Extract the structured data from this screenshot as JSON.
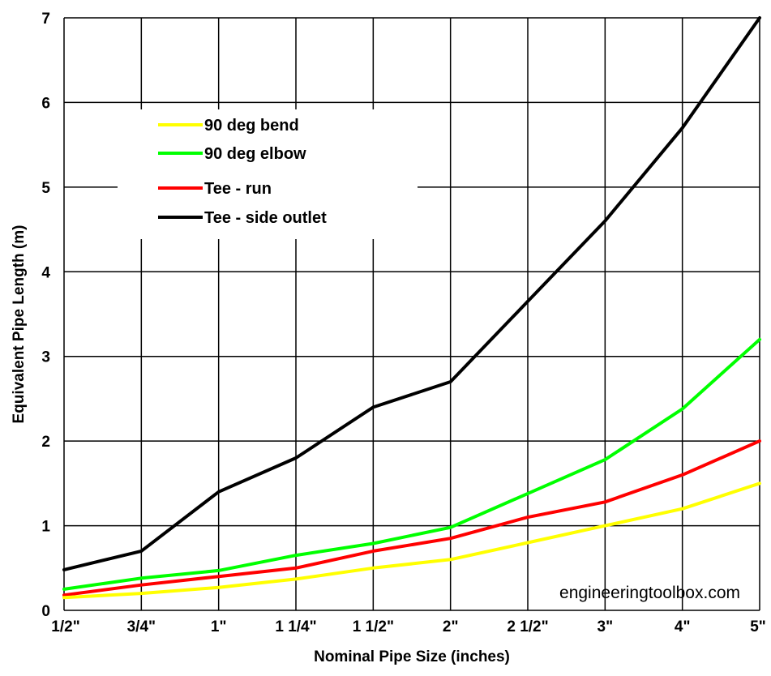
{
  "chart_data": {
    "type": "line",
    "title": "",
    "xlabel": "Nominal Pipe Size (inches)",
    "ylabel": "Equivalent Pipe Length (m)",
    "categories": [
      "1/2\"",
      "3/4\"",
      "1\"",
      "1 1/4\"",
      "1 1/2\"",
      "2\"",
      "2 1/2\"",
      "3\"",
      "4\"",
      "5\""
    ],
    "ylim": [
      0,
      7
    ],
    "yticks": [
      "0",
      "1",
      "2",
      "3",
      "4",
      "5",
      "6",
      "7"
    ],
    "grid": true,
    "legend_position": "top-left",
    "series": [
      {
        "name": "90 deg bend",
        "color": "#ffff00",
        "values": [
          0.15,
          0.2,
          0.27,
          0.37,
          0.5,
          0.6,
          0.8,
          1.0,
          1.2,
          1.5
        ]
      },
      {
        "name": "90 deg elbow",
        "color": "#00ff00",
        "values": [
          0.25,
          0.38,
          0.47,
          0.65,
          0.79,
          0.98,
          1.38,
          1.78,
          2.38,
          3.2
        ]
      },
      {
        "name": "Tee - run",
        "color": "#ff0000",
        "values": [
          0.18,
          0.3,
          0.4,
          0.5,
          0.7,
          0.85,
          1.1,
          1.28,
          1.6,
          2.0
        ]
      },
      {
        "name": "Tee - side outlet",
        "color": "#000000",
        "values": [
          0.48,
          0.7,
          1.4,
          1.8,
          2.4,
          2.7,
          3.65,
          4.6,
          5.7,
          7.0
        ]
      }
    ],
    "annotation": "engineeringtoolbox.com"
  }
}
